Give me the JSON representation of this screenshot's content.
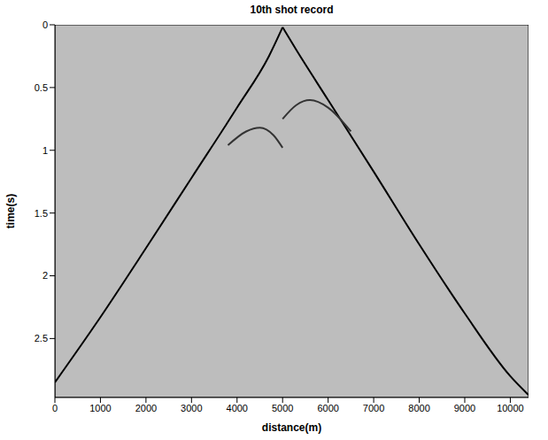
{
  "chart_data": {
    "type": "line",
    "title": "10th shot record",
    "x_label": "distance(m)",
    "y_label": "time(s)",
    "xlim": [
      0,
      10400
    ],
    "ylim": [
      0,
      2.97
    ],
    "xticks": [
      0,
      1000,
      2000,
      3000,
      4000,
      5000,
      6000,
      7000,
      8000,
      9000,
      10000
    ],
    "yticks": [
      0,
      0.5,
      1,
      1.5,
      2,
      2.5
    ],
    "grid": false,
    "series": [
      {
        "color": "#000000",
        "x": [
          0,
          1000,
          2000,
          3000,
          4000,
          4700,
          5000
        ],
        "values": [
          2.85,
          2.33,
          1.78,
          1.22,
          0.66,
          0.25,
          0.02
        ]
      },
      {
        "color": "#000000",
        "x": [
          5000,
          5300,
          6000,
          7000,
          8000,
          9000,
          10000,
          10400
        ],
        "values": [
          0.02,
          0.2,
          0.6,
          1.17,
          1.75,
          2.3,
          2.8,
          2.95
        ]
      },
      {
        "color": "#333333",
        "x": [
          3800,
          4200,
          4500,
          4800,
          5000
        ],
        "values": [
          0.96,
          0.85,
          0.82,
          0.88,
          0.98
        ]
      },
      {
        "color": "#333333",
        "x": [
          5000,
          5300,
          5600,
          6000,
          6500
        ],
        "values": [
          0.75,
          0.64,
          0.6,
          0.66,
          0.85
        ]
      }
    ]
  }
}
